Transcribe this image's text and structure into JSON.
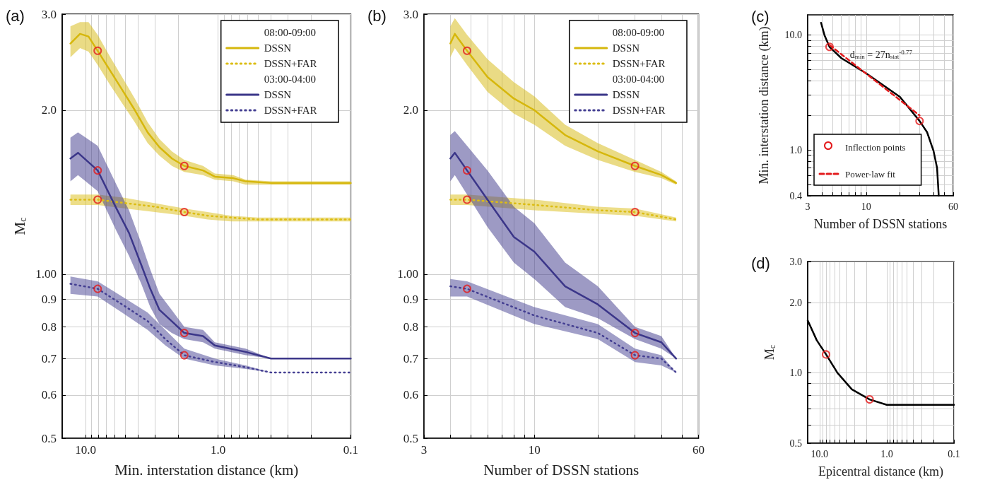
{
  "chart_data": [
    {
      "type": "line",
      "title": "(a)",
      "xlabel": "Min. interstation distance (km)",
      "ylabel": "M$_{c}$",
      "log": "xy",
      "xlim": [
        15,
        0.1
      ],
      "xticks": [
        {
          "value": 10,
          "label": "10.0"
        },
        {
          "value": 9,
          "label": null
        },
        {
          "value": 8,
          "label": null
        },
        {
          "value": 7,
          "label": null
        },
        {
          "value": 6,
          "label": null
        },
        {
          "value": 5,
          "label": null
        },
        {
          "value": 4,
          "label": null
        },
        {
          "value": 3,
          "label": null
        },
        {
          "value": 2,
          "label": null
        },
        {
          "value": 1,
          "label": "1.0"
        },
        {
          "value": 0.9,
          "label": null
        },
        {
          "value": 0.8,
          "label": null
        },
        {
          "value": 0.7,
          "label": null
        },
        {
          "value": 0.6,
          "label": null
        },
        {
          "value": 0.5,
          "label": null
        },
        {
          "value": 0.4,
          "label": null
        },
        {
          "value": 0.3,
          "label": null
        },
        {
          "value": 0.2,
          "label": null
        },
        0.1
      ],
      "ylim": [
        0.5,
        3
      ],
      "yticks": [
        0.5,
        0.6,
        0.7,
        0.8,
        0.9,
        {
          "value": 1,
          "label": "1.00"
        },
        {
          "value": 2,
          "label": "2.0"
        },
        {
          "value": 3,
          "label": "3.0"
        }
      ],
      "grid": true,
      "legend": "top right",
      "annotations": [
        "08:00-09:00",
        "03:00-04:00"
      ],
      "series": [
        {
          "name": "DSSN",
          "color": "#d6b70c",
          "line_style": "solid",
          "x": [
            13,
            11,
            9.5,
            8.1,
            6.5,
            5.3,
            4.25,
            3.4,
            2.77,
            2.23,
            1.8,
            1.3,
            1.06,
            0.77,
            0.62,
            0.4,
            0.1
          ],
          "values": [
            2.65,
            2.76,
            2.73,
            2.57,
            2.36,
            2.18,
            2.0,
            1.82,
            1.71,
            1.63,
            1.58,
            1.55,
            1.51,
            1.5,
            1.48,
            1.47,
            1.47
          ],
          "upper": [
            2.85,
            2.9,
            2.9,
            2.75,
            2.5,
            2.3,
            2.1,
            1.9,
            1.77,
            1.68,
            1.62,
            1.58,
            1.53,
            1.52,
            1.49,
            1.48,
            1.48
          ],
          "lower": [
            2.5,
            2.6,
            2.56,
            2.42,
            2.22,
            2.06,
            1.9,
            1.74,
            1.65,
            1.58,
            1.54,
            1.52,
            1.49,
            1.48,
            1.46,
            1.46,
            1.46
          ]
        },
        {
          "name": "DSSN+FAR",
          "color": "#dcbd14",
          "line_style": "dotted",
          "x": [
            13,
            8.1,
            5,
            3,
            1.8,
            1.2,
            0.8,
            0.5,
            0.1
          ],
          "values": [
            1.37,
            1.37,
            1.35,
            1.33,
            1.3,
            1.28,
            1.27,
            1.26,
            1.26
          ],
          "upper": [
            1.4,
            1.4,
            1.38,
            1.35,
            1.32,
            1.3,
            1.28,
            1.27,
            1.27
          ],
          "lower": [
            1.34,
            1.34,
            1.32,
            1.3,
            1.28,
            1.26,
            1.25,
            1.25,
            1.25
          ]
        },
        {
          "name": "DSSN",
          "color": "#3b3689",
          "line_style": "solid",
          "x": [
            13,
            11.4,
            8.1,
            5.85,
            4.7,
            3.8,
            3.25,
            2.77,
            2.24,
            1.8,
            1.3,
            1.06,
            0.62,
            0.4,
            0.1
          ],
          "values": [
            1.63,
            1.67,
            1.55,
            1.32,
            1.19,
            1.04,
            0.94,
            0.86,
            0.82,
            0.78,
            0.77,
            0.74,
            0.72,
            0.7,
            0.7
          ],
          "upper": [
            1.78,
            1.82,
            1.72,
            1.46,
            1.31,
            1.14,
            1.02,
            0.92,
            0.86,
            0.8,
            0.79,
            0.75,
            0.73,
            0.7,
            0.7
          ],
          "lower": [
            1.48,
            1.52,
            1.42,
            1.2,
            1.08,
            0.96,
            0.87,
            0.81,
            0.78,
            0.76,
            0.75,
            0.73,
            0.71,
            0.7,
            0.7
          ]
        },
        {
          "name": "DSSN+FAR",
          "color": "#443f92",
          "line_style": "dotted",
          "x": [
            13,
            8.1,
            5.3,
            3.4,
            2.5,
            1.8,
            1.06,
            0.62,
            0.4,
            0.1
          ],
          "values": [
            0.96,
            0.94,
            0.88,
            0.82,
            0.76,
            0.71,
            0.69,
            0.675,
            0.66,
            0.66
          ],
          "upper": [
            0.99,
            0.97,
            0.91,
            0.85,
            0.79,
            0.73,
            0.7,
            0.68,
            0.66,
            0.66
          ],
          "lower": [
            0.92,
            0.91,
            0.85,
            0.79,
            0.74,
            0.7,
            0.68,
            0.67,
            0.66,
            0.66
          ]
        },
        {
          "type": "scatter",
          "color": "#e31a1c",
          "marker": "circle",
          "x": [
            8.1,
            1.8,
            8.1,
            8.1,
            1.8,
            8.1,
            1.8,
            1.8
          ],
          "values": [
            2.57,
            1.58,
            1.55,
            1.37,
            1.3,
            0.94,
            0.78,
            0.71
          ]
        }
      ]
    },
    {
      "type": "line",
      "title": "(b)",
      "xlabel": "Number of DSSN stations",
      "log": "xy",
      "xlim": [
        3,
        60
      ],
      "xticks": [
        3,
        {
          "value": 4,
          "label": null
        },
        {
          "value": 5,
          "label": null
        },
        {
          "value": 6,
          "label": null
        },
        {
          "value": 7,
          "label": null
        },
        {
          "value": 8,
          "label": null
        },
        {
          "value": 9,
          "label": null
        },
        10,
        {
          "value": 20,
          "label": null
        },
        {
          "value": 30,
          "label": null
        },
        {
          "value": 40,
          "label": null
        },
        {
          "value": 50,
          "label": null
        },
        60
      ],
      "ylim": [
        0.5,
        3
      ],
      "yticks": [
        0.5,
        0.6,
        0.7,
        0.8,
        0.9,
        {
          "value": 1,
          "label": "1.00"
        },
        {
          "value": 2,
          "label": "2.0"
        },
        {
          "value": 3,
          "label": "3.0"
        }
      ],
      "grid": true,
      "legend": "top right",
      "annotations": [
        "08:00-09:00",
        "03:00-04:00"
      ],
      "series": [
        {
          "name": "DSSN",
          "color": "#d6b70c",
          "line_style": "solid",
          "x": [
            4,
            4.2,
            4.8,
            6,
            8,
            10,
            14,
            20,
            30,
            40,
            47
          ],
          "values": [
            2.65,
            2.76,
            2.57,
            2.3,
            2.1,
            2.0,
            1.8,
            1.68,
            1.58,
            1.52,
            1.47
          ],
          "upper": [
            2.85,
            2.95,
            2.75,
            2.48,
            2.25,
            2.12,
            1.88,
            1.74,
            1.62,
            1.54,
            1.48
          ],
          "lower": [
            2.5,
            2.6,
            2.42,
            2.16,
            1.97,
            1.88,
            1.72,
            1.62,
            1.54,
            1.5,
            1.46
          ]
        },
        {
          "name": "DSSN+FAR",
          "color": "#dcbd14",
          "line_style": "dotted",
          "x": [
            4,
            4.8,
            10,
            20,
            30,
            47
          ],
          "values": [
            1.37,
            1.37,
            1.34,
            1.31,
            1.3,
            1.26
          ],
          "upper": [
            1.4,
            1.4,
            1.37,
            1.33,
            1.32,
            1.27
          ],
          "lower": [
            1.34,
            1.34,
            1.31,
            1.29,
            1.28,
            1.25
          ]
        },
        {
          "name": "DSSN",
          "color": "#3b3689",
          "line_style": "solid",
          "x": [
            4,
            4.2,
            4.8,
            6,
            8,
            10,
            14,
            20,
            30,
            40,
            47
          ],
          "values": [
            1.63,
            1.67,
            1.55,
            1.37,
            1.17,
            1.1,
            0.95,
            0.88,
            0.78,
            0.75,
            0.7
          ],
          "upper": [
            1.8,
            1.83,
            1.72,
            1.55,
            1.33,
            1.24,
            1.05,
            0.95,
            0.8,
            0.77,
            0.7
          ],
          "lower": [
            1.48,
            1.52,
            1.4,
            1.22,
            1.05,
            0.98,
            0.87,
            0.83,
            0.76,
            0.73,
            0.7
          ]
        },
        {
          "name": "DSSN+FAR",
          "color": "#443f92",
          "line_style": "dotted",
          "x": [
            4,
            4.8,
            10,
            20,
            30,
            40,
            47
          ],
          "values": [
            0.95,
            0.94,
            0.84,
            0.78,
            0.71,
            0.7,
            0.66
          ],
          "upper": [
            0.98,
            0.97,
            0.87,
            0.81,
            0.73,
            0.71,
            0.66
          ],
          "lower": [
            0.91,
            0.91,
            0.81,
            0.76,
            0.69,
            0.68,
            0.66
          ]
        },
        {
          "type": "scatter",
          "color": "#e31a1c",
          "marker": "circle",
          "x": [
            4.8,
            30,
            4.8,
            4.8,
            30,
            4.8,
            30,
            30
          ],
          "values": [
            2.57,
            1.58,
            1.55,
            1.37,
            1.3,
            0.94,
            0.78,
            0.71
          ]
        }
      ]
    },
    {
      "type": "line",
      "title": "(c)",
      "xlabel": "Number of DSSN stations",
      "ylabel": "Min. interstation distance (km)",
      "log": "xy",
      "xlim": [
        3,
        60
      ],
      "xticks": [
        3,
        {
          "value": 4,
          "label": null
        },
        {
          "value": 5,
          "label": null
        },
        {
          "value": 6,
          "label": null
        },
        {
          "value": 7,
          "label": null
        },
        {
          "value": 8,
          "label": null
        },
        {
          "value": 9,
          "label": null
        },
        10,
        {
          "value": 20,
          "label": null
        },
        {
          "value": 30,
          "label": null
        },
        {
          "value": 40,
          "label": null
        },
        {
          "value": 50,
          "label": null
        },
        60
      ],
      "ylim": [
        0.4,
        15
      ],
      "yticks": [
        0.4,
        {
          "value": 0.5,
          "label": null
        },
        {
          "value": 0.6,
          "label": null
        },
        {
          "value": 0.7,
          "label": null
        },
        {
          "value": 0.8,
          "label": null
        },
        {
          "value": 0.9,
          "label": null
        },
        {
          "value": 1,
          "label": "1.0"
        },
        {
          "value": 2,
          "label": null
        },
        {
          "value": 3,
          "label": null
        },
        {
          "value": 4,
          "label": null
        },
        {
          "value": 5,
          "label": null
        },
        {
          "value": 6,
          "label": null
        },
        {
          "value": 7,
          "label": null
        },
        {
          "value": 8,
          "label": null
        },
        {
          "value": 9,
          "label": null
        },
        {
          "value": 10,
          "label": "10.0"
        }
      ],
      "grid": true,
      "legend": "bottom left",
      "annotations": [
        "d$_{min}$ = 27n$_{stat}$$^{-0.77}$"
      ],
      "series": [
        {
          "color": "#000000",
          "line_style": "solid",
          "x": [
            3.95,
            4.25,
            4.7,
            6,
            10,
            20,
            30,
            35,
            40,
            43,
            44.5
          ],
          "values": [
            12.8,
            9.9,
            7.9,
            6.3,
            4.65,
            2.9,
            1.79,
            1.43,
            0.98,
            0.7,
            0.4
          ]
        },
        {
          "name": "Inflection points",
          "type": "scatter",
          "color": "#e31a1c",
          "marker": "circle",
          "x": [
            4.7,
            30
          ],
          "values": [
            7.9,
            1.79
          ]
        },
        {
          "name": "Power-law fit",
          "color": "#e31a1c",
          "line_style": "dashed",
          "x": [
            4.7,
            30
          ],
          "values": [
            8.2,
            2.0
          ]
        }
      ]
    },
    {
      "type": "line",
      "title": "(d)",
      "xlabel": "Epicentral distance (km)",
      "ylabel": "M$_{c}$",
      "log": "xy",
      "xlim": [
        15,
        0.1
      ],
      "xticks": [
        {
          "value": 10,
          "label": "10.0"
        },
        {
          "value": 9,
          "label": null
        },
        {
          "value": 8,
          "label": null
        },
        {
          "value": 7,
          "label": null
        },
        {
          "value": 6,
          "label": null
        },
        {
          "value": 5,
          "label": null
        },
        {
          "value": 4,
          "label": null
        },
        {
          "value": 3,
          "label": null
        },
        {
          "value": 2,
          "label": null
        },
        {
          "value": 1,
          "label": "1.0"
        },
        {
          "value": 0.9,
          "label": null
        },
        {
          "value": 0.8,
          "label": null
        },
        {
          "value": 0.7,
          "label": null
        },
        {
          "value": 0.6,
          "label": null
        },
        {
          "value": 0.5,
          "label": null
        },
        {
          "value": 0.4,
          "label": null
        },
        {
          "value": 0.3,
          "label": null
        },
        {
          "value": 0.2,
          "label": null
        },
        0.1
      ],
      "ylim": [
        0.5,
        3
      ],
      "yticks": [
        0.5,
        {
          "value": 0.6,
          "label": null
        },
        {
          "value": 0.7,
          "label": null
        },
        {
          "value": 0.8,
          "label": null
        },
        {
          "value": 0.9,
          "label": null
        },
        {
          "value": 1,
          "label": "1.0"
        },
        {
          "value": 2,
          "label": "2.0"
        },
        {
          "value": 3,
          "label": "3.0"
        }
      ],
      "grid": true,
      "series": [
        {
          "color": "#000000",
          "line_style": "solid",
          "x": [
            15,
            11,
            8,
            5.4,
            3.3,
            1.8,
            1.0,
            0.5,
            0.1
          ],
          "values": [
            1.68,
            1.38,
            1.2,
            1.0,
            0.85,
            0.77,
            0.73,
            0.73,
            0.73
          ]
        },
        {
          "type": "scatter",
          "color": "#e31a1c",
          "marker": "circle",
          "x": [
            8,
            1.8
          ],
          "values": [
            1.2,
            0.77
          ]
        }
      ]
    }
  ]
}
